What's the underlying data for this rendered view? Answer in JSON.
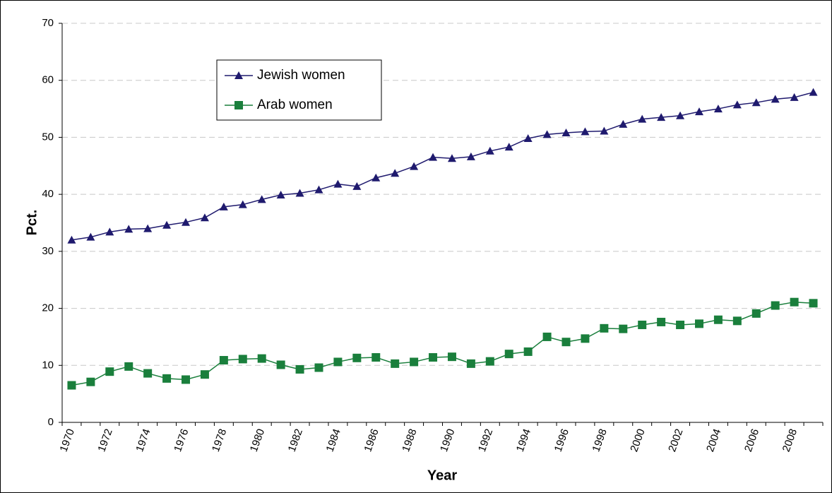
{
  "chart_data": {
    "type": "line",
    "x_label": "Year",
    "y_label": "Pct.",
    "categories": [
      "1970",
      null,
      "1972",
      null,
      "1974",
      null,
      "1976",
      null,
      "1978",
      null,
      "1980",
      null,
      "1982",
      null,
      "1984",
      null,
      "1986",
      null,
      "1988",
      null,
      "1990",
      null,
      "1992",
      null,
      "1994",
      null,
      "1996",
      null,
      "1998",
      null,
      "2000",
      null,
      "2002",
      null,
      "2004",
      null,
      "2006",
      null,
      "2008",
      null
    ],
    "series": [
      {
        "name": "Jewish women",
        "color": "#1f1a6e",
        "marker": "triangle",
        "values": [
          32,
          32.5,
          33.4,
          33.9,
          34.0,
          34.6,
          35.1,
          35.9,
          37.8,
          38.2,
          39.1,
          39.9,
          40.2,
          40.8,
          41.8,
          41.4,
          42.9,
          43.7,
          44.9,
          46.5,
          46.3,
          46.6,
          47.6,
          48.3,
          49.8,
          50.5,
          50.8,
          51.0,
          51.1,
          52.3,
          53.2,
          53.5,
          53.8,
          54.5,
          55.0,
          55.7,
          56.1,
          56.7,
          57.0,
          57.9
        ]
      },
      {
        "name": "Arab women",
        "color": "#1a7f3c",
        "marker": "square",
        "values": [
          6.5,
          7.1,
          8.9,
          9.8,
          8.6,
          7.7,
          7.5,
          8.4,
          10.9,
          11.1,
          11.2,
          10.1,
          9.3,
          9.6,
          10.6,
          11.3,
          11.4,
          10.3,
          10.6,
          11.4,
          11.5,
          10.3,
          10.7,
          12.0,
          12.4,
          15.0,
          14.1,
          14.7,
          16.5,
          16.4,
          17.1,
          17.6,
          17.1,
          17.3,
          18.0,
          17.8,
          19.1,
          20.5,
          21.1,
          20.9
        ]
      }
    ],
    "ylim": [
      0,
      70
    ],
    "yticks": [
      0,
      10,
      20,
      30,
      40,
      50,
      60,
      70
    ],
    "grid": true
  }
}
